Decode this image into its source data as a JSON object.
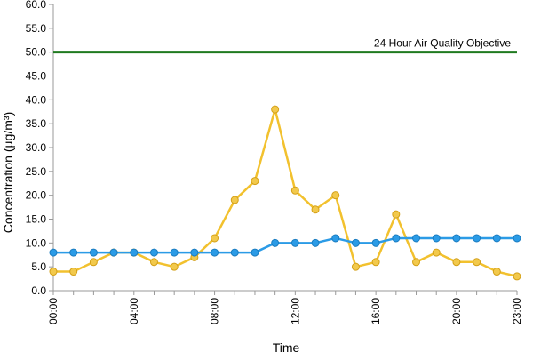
{
  "chart_data": {
    "type": "line",
    "xlabel": "Time",
    "ylabel": "Concentration (µg/m³)",
    "ylim": [
      0,
      60
    ],
    "y_ticks": [
      "0.0",
      "5.0",
      "10.0",
      "15.0",
      "20.0",
      "25.0",
      "30.0",
      "35.0",
      "40.0",
      "45.0",
      "50.0",
      "55.0",
      "60.0"
    ],
    "x": [
      "00:00",
      "01:00",
      "02:00",
      "03:00",
      "04:00",
      "05:00",
      "06:00",
      "07:00",
      "08:00",
      "09:00",
      "10:00",
      "11:00",
      "12:00",
      "13:00",
      "14:00",
      "15:00",
      "16:00",
      "17:00",
      "18:00",
      "19:00",
      "20:00",
      "21:00",
      "22:00",
      "23:00"
    ],
    "x_tick_labels": [
      "00:00",
      "04:00",
      "08:00",
      "12:00",
      "16:00",
      "20:00",
      "23:00"
    ],
    "grid": false,
    "series": [
      {
        "color": "#f2c12e",
        "marker_fill": "#f2c94c",
        "marker_stroke": "#d4a017",
        "values": [
          4,
          4,
          6,
          8,
          8,
          6,
          5,
          7,
          11,
          19,
          23,
          38,
          21,
          17,
          20,
          5,
          6,
          16,
          6,
          8,
          6,
          6,
          4,
          3
        ]
      },
      {
        "color": "#2b9be6",
        "marker_fill": "#2b9be6",
        "marker_stroke": "#1a7cc0",
        "values": [
          8,
          8,
          8,
          8,
          8,
          8,
          8,
          8,
          8,
          8,
          8,
          10,
          10,
          10,
          11,
          10,
          10,
          11,
          11,
          11,
          11,
          11,
          11,
          11
        ]
      }
    ],
    "reference_line": {
      "value": 50,
      "label": "24 Hour Air Quality Objective",
      "color": "#1f7a1f"
    }
  }
}
